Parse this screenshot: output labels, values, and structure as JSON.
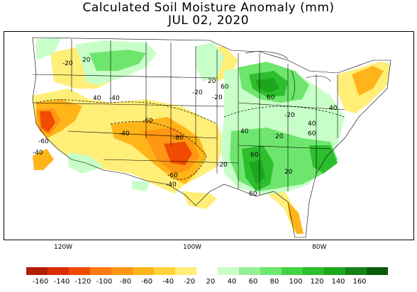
{
  "title": "Calculated Soil Moisture Anomaly (mm)",
  "subtitle": "JUL 02, 2020",
  "longitude_labels": [
    "120W",
    "100W",
    "80W"
  ],
  "legend": {
    "colors_negative": [
      "#b41e00",
      "#dc2d00",
      "#f04b00",
      "#ff7814",
      "#ff9614",
      "#ffb419",
      "#ffd23c",
      "#ffee78"
    ],
    "colors_positive": [
      "#c8ffc8",
      "#96f096",
      "#6ee66e",
      "#46d246",
      "#2dbe2d",
      "#1ea51e",
      "#148214",
      "#0a5a0a"
    ],
    "tick_labels": [
      "-160",
      "-140",
      "-120",
      "-100",
      "-80",
      "-60",
      "-40",
      "-20",
      "20",
      "40",
      "60",
      "80",
      "100",
      "120",
      "140",
      "160"
    ]
  },
  "contour_labels": {
    "a": "-20",
    "b": "20",
    "c": "-40",
    "d": "-60",
    "e": "-80",
    "f": "40",
    "g": "60",
    "h": "-20",
    "i": "20",
    "j": "40",
    "k": "60",
    "l": "-40",
    "m": "-60",
    "n": "-20",
    "o": "20",
    "p": "60",
    "q": "40",
    "r": "60",
    "s": "20",
    "t": "-20",
    "u": "-40",
    "v": "-20",
    "w": "40",
    "x": "60",
    "y": "-60",
    "z": "-40"
  }
}
